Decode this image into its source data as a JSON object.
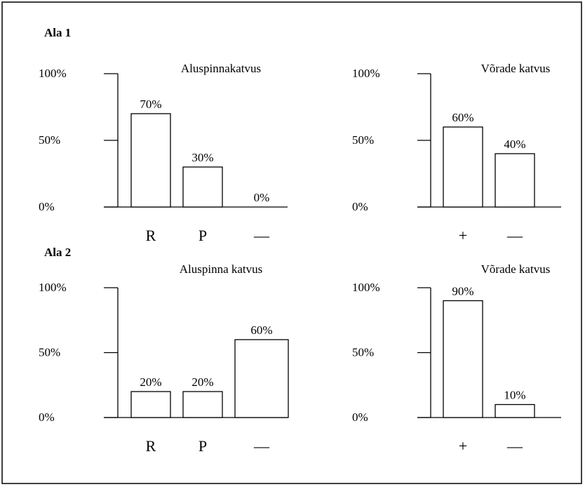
{
  "area_labels": [
    "Ala 1",
    "Ala 2"
  ],
  "chart_data": [
    {
      "type": "bar",
      "title": "Aluspinnakatvus",
      "categories": [
        "R",
        "P",
        "—"
      ],
      "values": [
        70,
        30,
        0
      ],
      "value_labels": [
        "70%",
        "30%",
        "0%"
      ],
      "ylim": [
        0,
        100
      ],
      "yticks": [
        {
          "value": 0,
          "label": "0%"
        },
        {
          "value": 50,
          "label": "50%"
        },
        {
          "value": 100,
          "label": "100%"
        }
      ],
      "color": "#ffffff"
    },
    {
      "type": "bar",
      "title": "Võrade katvus",
      "categories": [
        "+",
        "—"
      ],
      "values": [
        60,
        40
      ],
      "value_labels": [
        "60%",
        "40%"
      ],
      "ylim": [
        0,
        100
      ],
      "yticks": [
        {
          "value": 0,
          "label": "0%"
        },
        {
          "value": 50,
          "label": "50%"
        },
        {
          "value": 100,
          "label": "100%"
        }
      ],
      "color": "#ffffff"
    },
    {
      "type": "bar",
      "title": "Aluspinna katvus",
      "categories": [
        "R",
        "P",
        "—"
      ],
      "values": [
        20,
        20,
        60
      ],
      "value_labels": [
        "20%",
        "20%",
        "60%"
      ],
      "ylim": [
        0,
        100
      ],
      "yticks": [
        {
          "value": 0,
          "label": "0%"
        },
        {
          "value": 50,
          "label": "50%"
        },
        {
          "value": 100,
          "label": "100%"
        }
      ],
      "color": "#ffffff"
    },
    {
      "type": "bar",
      "title": "Võrade katvus",
      "categories": [
        "+",
        "—"
      ],
      "values": [
        90,
        10
      ],
      "value_labels": [
        "90%",
        "10%"
      ],
      "ylim": [
        0,
        100
      ],
      "yticks": [
        {
          "value": 0,
          "label": "0%"
        },
        {
          "value": 50,
          "label": "50%"
        },
        {
          "value": 100,
          "label": "100%"
        }
      ],
      "color": "#ffffff"
    }
  ]
}
